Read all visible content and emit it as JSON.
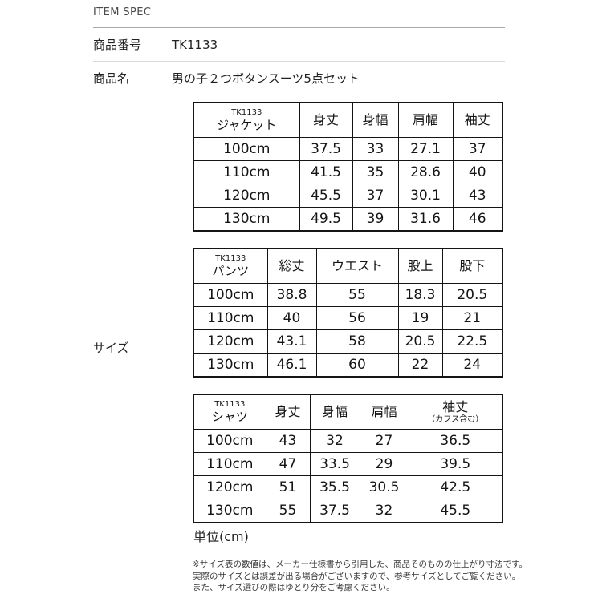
{
  "page": {
    "header": "ITEM SPEC",
    "rows": [
      {
        "label": "商品番号",
        "value": "TK1133"
      },
      {
        "label": "商品名",
        "value": "男の子２つボタンスーツ5点セット"
      }
    ],
    "size_label": "サイズ",
    "unit_label": "単位(cm)",
    "notes": [
      "※サイズ表の数値は、メーカー仕様書から引用した、商品そのものの仕上がり寸法です。",
      "実際のサイズとは誤差が出る場合がございますので、参考サイズとしてご覧ください。",
      "また、サイズ選びの際はゆとり分をご考慮ください。"
    ]
  },
  "tables": [
    {
      "key": "jacket",
      "product_code": "TK1133",
      "item": "ジャケット",
      "columns": [
        {
          "label": "身丈",
          "note": ""
        },
        {
          "label": "身幅",
          "note": ""
        },
        {
          "label": "肩幅",
          "note": ""
        },
        {
          "label": "袖丈",
          "note": ""
        }
      ],
      "rows": [
        {
          "size": "100cm",
          "values": [
            "37.5",
            "33",
            "27.1",
            "37"
          ]
        },
        {
          "size": "110cm",
          "values": [
            "41.5",
            "35",
            "28.6",
            "40"
          ]
        },
        {
          "size": "120cm",
          "values": [
            "45.5",
            "37",
            "30.1",
            "43"
          ]
        },
        {
          "size": "130cm",
          "values": [
            "49.5",
            "39",
            "31.6",
            "46"
          ]
        }
      ]
    },
    {
      "key": "pants",
      "product_code": "TK1133",
      "item": "パンツ",
      "columns": [
        {
          "label": "総丈",
          "note": ""
        },
        {
          "label": "ウエスト",
          "note": ""
        },
        {
          "label": "股上",
          "note": ""
        },
        {
          "label": "股下",
          "note": ""
        }
      ],
      "rows": [
        {
          "size": "100cm",
          "values": [
            "38.8",
            "55",
            "18.3",
            "20.5"
          ]
        },
        {
          "size": "110cm",
          "values": [
            "40",
            "56",
            "19",
            "21"
          ]
        },
        {
          "size": "120cm",
          "values": [
            "43.1",
            "58",
            "20.5",
            "22.5"
          ]
        },
        {
          "size": "130cm",
          "values": [
            "46.1",
            "60",
            "22",
            "24"
          ]
        }
      ]
    },
    {
      "key": "shirt",
      "product_code": "TK1133",
      "item": "シャツ",
      "columns": [
        {
          "label": "身丈",
          "note": ""
        },
        {
          "label": "身幅",
          "note": ""
        },
        {
          "label": "肩幅",
          "note": ""
        },
        {
          "label": "袖丈",
          "note": "（カフス含む）"
        }
      ],
      "rows": [
        {
          "size": "100cm",
          "values": [
            "43",
            "32",
            "27",
            "36.5"
          ]
        },
        {
          "size": "110cm",
          "values": [
            "47",
            "33.5",
            "29",
            "39.5"
          ]
        },
        {
          "size": "120cm",
          "values": [
            "51",
            "35.5",
            "30.5",
            "42.5"
          ]
        },
        {
          "size": "130cm",
          "values": [
            "55",
            "37.5",
            "32",
            "45.5"
          ]
        }
      ]
    }
  ],
  "colors": {
    "background": "#ffffff",
    "text": "#1f1f1f",
    "table_border": "#141414",
    "divider": "#d9d9d9",
    "divider_dark": "#aaaaaa"
  }
}
